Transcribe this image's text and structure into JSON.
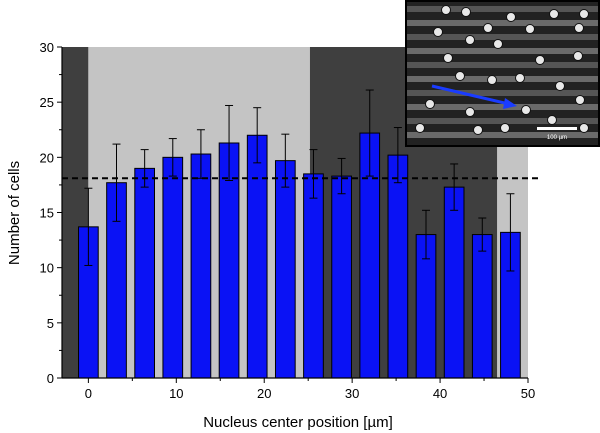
{
  "chart_data": {
    "type": "bar",
    "xlabel": "Nucleus center position [µm]",
    "ylabel": "Number of cells",
    "xlim": [
      -3,
      50
    ],
    "ylim": [
      0,
      30
    ],
    "x_ticks": [
      0,
      10,
      20,
      30,
      40,
      50
    ],
    "y_ticks": [
      0,
      5,
      10,
      15,
      20,
      25,
      30
    ],
    "bar_color": "#0a12f5",
    "series": [
      {
        "x": [
          0,
          3.2,
          6.4,
          9.6,
          12.8,
          16,
          19.2,
          22.4,
          25.6,
          28.8,
          32,
          35.2,
          38.4,
          41.6,
          44.8,
          48
        ],
        "values": [
          13.7,
          17.7,
          19.0,
          20.0,
          20.3,
          21.3,
          22.0,
          19.7,
          18.5,
          18.3,
          22.2,
          20.2,
          13.0,
          17.3,
          13.0,
          13.2
        ],
        "errors": [
          3.5,
          3.5,
          1.7,
          1.7,
          2.2,
          3.4,
          2.5,
          2.4,
          2.2,
          1.6,
          3.9,
          2.5,
          2.2,
          2.1,
          1.5,
          3.5
        ]
      }
    ],
    "mean_line": {
      "y": 18.1,
      "style": "dashed",
      "color": "#000000"
    },
    "background_bands": [
      {
        "from": -3,
        "to": 0,
        "color": "#3f3f3f"
      },
      {
        "from": 0,
        "to": 25.2,
        "color": "#c4c4c4"
      },
      {
        "from": 25.2,
        "to": 46.5,
        "color": "#3f3f3f"
      },
      {
        "from": 46.5,
        "to": 50,
        "color": "#c4c4c4"
      }
    ],
    "inset": {
      "kind": "micrograph",
      "scale_bar_label": "100 µm",
      "arrow_color": "#1a3cff"
    },
    "grid": false,
    "legend": "none"
  }
}
